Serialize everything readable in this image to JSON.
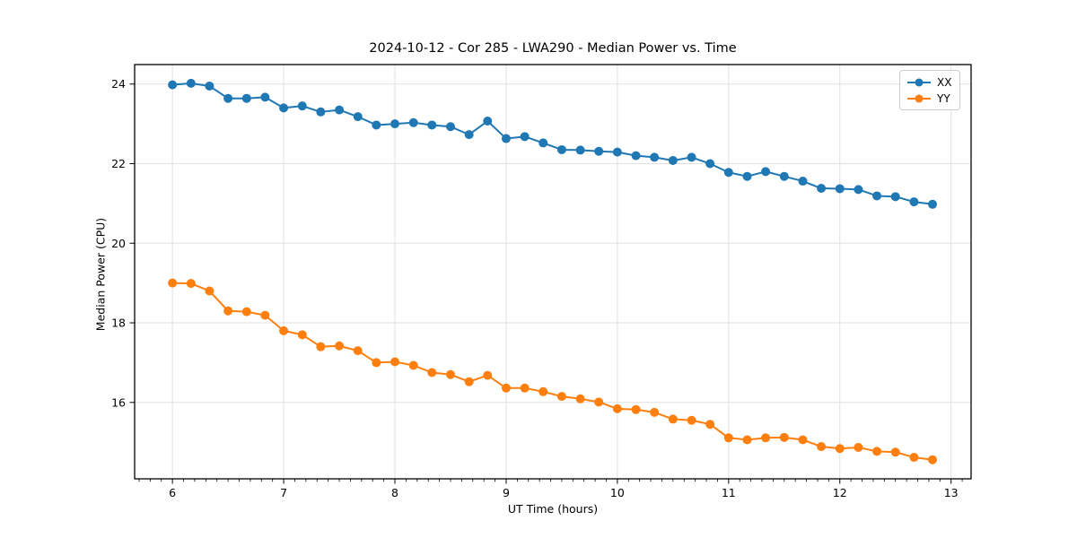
{
  "chart_data": {
    "type": "line",
    "title": "2024-10-12 - Cor 285 - LWA290 - Median Power vs. Time",
    "xlabel": "UT Time (hours)",
    "ylabel": "Median Power (CPU)",
    "xlim": [
      5.66,
      13.18
    ],
    "ylim": [
      14.08,
      24.49
    ],
    "x_ticks": [
      6,
      7,
      8,
      9,
      10,
      11,
      12,
      13
    ],
    "y_ticks": [
      16,
      18,
      20,
      22,
      24
    ],
    "minor_x_step": 0.1,
    "grid": true,
    "grid_color": "#e0e0e0",
    "spine_color": "#000000",
    "legend_position": "upper right",
    "x": [
      6.0,
      6.167,
      6.333,
      6.5,
      6.667,
      6.833,
      7.0,
      7.167,
      7.333,
      7.5,
      7.667,
      7.833,
      8.0,
      8.167,
      8.333,
      8.5,
      8.667,
      8.833,
      9.0,
      9.167,
      9.333,
      9.5,
      9.667,
      9.833,
      10.0,
      10.167,
      10.333,
      10.5,
      10.667,
      10.833,
      11.0,
      11.167,
      11.333,
      11.5,
      11.667,
      11.833,
      12.0,
      12.167,
      12.333,
      12.5,
      12.667,
      12.833
    ],
    "series": [
      {
        "name": "XX",
        "color": "#1f77b4",
        "values": [
          23.98,
          24.02,
          23.95,
          23.64,
          23.64,
          23.67,
          23.4,
          23.45,
          23.3,
          23.35,
          23.18,
          22.97,
          23.0,
          23.03,
          22.97,
          22.93,
          22.73,
          23.07,
          22.63,
          22.68,
          22.52,
          22.35,
          22.34,
          22.31,
          22.29,
          22.2,
          22.16,
          22.08,
          22.16,
          22.0,
          21.78,
          21.68,
          21.8,
          21.68,
          21.56,
          21.38,
          21.37,
          21.35,
          21.19,
          21.17,
          21.04,
          20.98
        ]
      },
      {
        "name": "YY",
        "color": "#ff7f0e",
        "values": [
          19.0,
          18.99,
          18.8,
          18.3,
          18.28,
          18.19,
          17.8,
          17.7,
          17.4,
          17.42,
          17.3,
          17.0,
          17.02,
          16.93,
          16.75,
          16.7,
          16.52,
          16.68,
          16.36,
          16.36,
          16.27,
          16.15,
          16.09,
          16.01,
          15.84,
          15.82,
          15.75,
          15.58,
          15.55,
          15.45,
          15.11,
          15.06,
          15.11,
          15.12,
          15.06,
          14.89,
          14.84,
          14.87,
          14.77,
          14.75,
          14.62,
          14.56
        ]
      }
    ]
  }
}
